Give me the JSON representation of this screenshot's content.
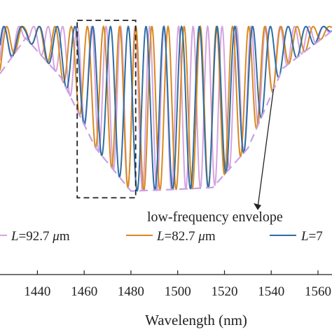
{
  "chart_data": {
    "type": "line",
    "xlabel": "Wavelength (nm)",
    "xlim": [
      1424,
      1566
    ],
    "x_ticks": [
      "1440",
      "1460",
      "1480",
      "1500",
      "1520",
      "1540",
      "1560"
    ],
    "x_tick_values": [
      1440,
      1460,
      1480,
      1500,
      1520,
      1540,
      1560
    ],
    "ylim": [
      0,
      1
    ],
    "grid": false,
    "series": [
      {
        "name": "L=92.7 μm",
        "color": "#d4a5e0",
        "style": "solid",
        "fsr_nm": 6.2,
        "phase": 0.0
      },
      {
        "name": "L=82.7 μm",
        "color": "#d98a1f",
        "style": "solid",
        "fsr_nm": 6.9,
        "phase": 1.3
      },
      {
        "name": "L=7",
        "color": "#2f6da3",
        "style": "solid",
        "fsr_nm": 7.6,
        "phase": 2.6
      }
    ],
    "envelope": {
      "color": "#c9a0e6",
      "style": "dashed",
      "points": [
        [
          1424,
          0.72
        ],
        [
          1435,
          0.92
        ],
        [
          1450,
          0.7
        ],
        [
          1465,
          0.3
        ],
        [
          1480,
          0.06
        ],
        [
          1500,
          0.07
        ],
        [
          1515,
          0.08
        ],
        [
          1530,
          0.3
        ],
        [
          1545,
          0.75
        ],
        [
          1566,
          0.96
        ]
      ]
    },
    "annotations": [
      {
        "text": "low-frequency envelope",
        "arrow_to_x": 1541,
        "arrow_to_y": 0.72
      }
    ],
    "highlight_box": {
      "x_range": [
        1457,
        1482
      ],
      "y_range": [
        0.03,
        0.98
      ],
      "style": "dashed",
      "color": "#222222"
    },
    "legend": {
      "position": "bottom",
      "entries": [
        "L=92.7 μm",
        "L=82.7 μm",
        "L=7"
      ]
    }
  },
  "legend_text": {
    "l1_pre": "L",
    "l1_post": "=92.7 ",
    "l1_unit": "μ",
    "l1_m": "m",
    "l2_pre": "L",
    "l2_post": "=82.7 ",
    "l2_unit": "μ",
    "l2_m": "m",
    "l3_pre": "L",
    "l3_post": "=7"
  }
}
